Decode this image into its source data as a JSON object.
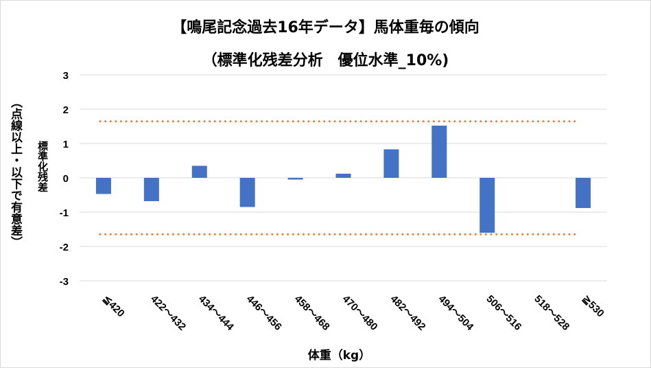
{
  "chart_data": {
    "type": "bar",
    "title": "【鳴尾記念過去16年データ】馬体重毎の傾向",
    "subtitle": "（標準化残差分析　優位水準_10%)",
    "xlabel": "体重（kg）",
    "ylabel": "標準化残差",
    "ylabel_note": "（点線以上・以下で有意差）",
    "categories": [
      "≦420",
      "422～432",
      "434～444",
      "446～456",
      "458～468",
      "470～480",
      "482～492",
      "494～504",
      "506～516",
      "518～528",
      "≧530"
    ],
    "values": [
      -0.47,
      -0.68,
      0.35,
      -0.85,
      -0.05,
      0.12,
      0.83,
      1.52,
      -1.6,
      0,
      -0.88
    ],
    "ylim": [
      -3,
      3
    ],
    "yticks": [
      "3",
      "2",
      "1",
      "0",
      "-1",
      "-2",
      "-3"
    ],
    "threshold": 1.645,
    "grid": true,
    "colors": {
      "bar": "#4472c4",
      "threshold": "#ed7d31",
      "grid": "#d9d9d9"
    }
  }
}
